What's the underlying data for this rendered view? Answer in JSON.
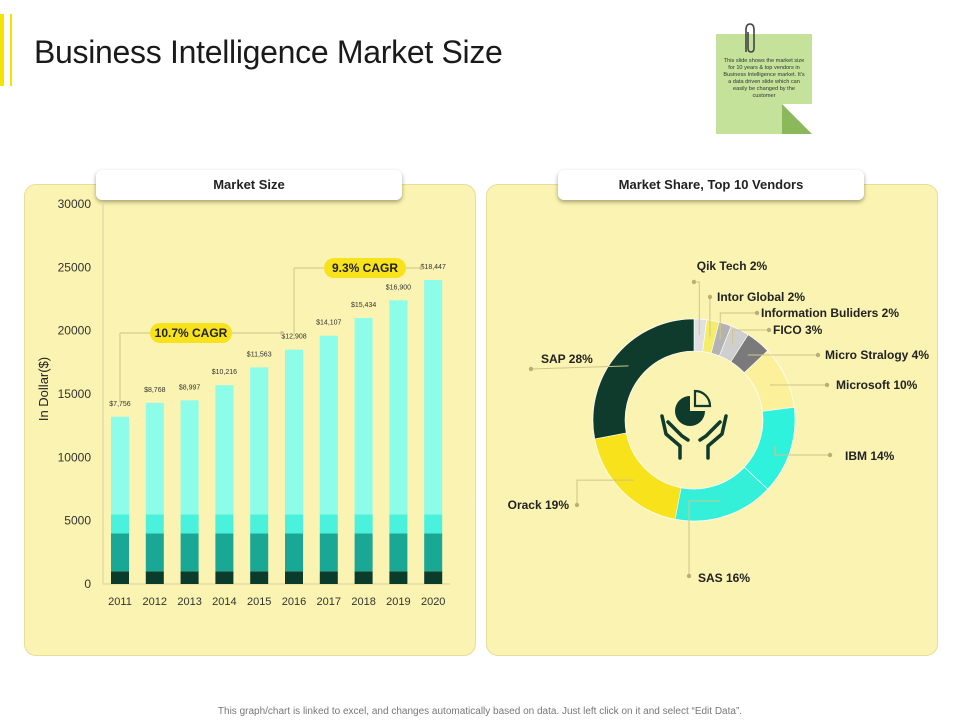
{
  "page": {
    "title": "Business Intelligence Market Size",
    "sticky_note": "This slide shows the market size for 10 years & top vendors in Business Intelligence market. It's a data driven slide which can easily be changed by the customer",
    "footer": "This graph/chart is linked to excel, and changes automatically  based on data. Just left click on it and select “Edit Data”."
  },
  "colors": {
    "accent": "#f2e400",
    "panel_bg": "#faf3b1",
    "sticky": "#c4e29a"
  },
  "chart_data": [
    {
      "type": "bar",
      "title": "Market Size",
      "ylabel": "In Dollar($)",
      "xlabel": "",
      "ylim": [
        0,
        30000
      ],
      "yticks": [
        0,
        5000,
        10000,
        15000,
        20000,
        25000,
        30000
      ],
      "categories": [
        "2011",
        "2012",
        "2013",
        "2014",
        "2015",
        "2016",
        "2017",
        "2018",
        "2019",
        "2020"
      ],
      "values": [
        13200,
        14300,
        14500,
        15700,
        17100,
        18500,
        19600,
        21000,
        22400,
        24000
      ],
      "series": [
        {
          "values": [
            1000,
            1000,
            1000,
            1000,
            1000,
            1000,
            1000,
            1000,
            1000,
            1000
          ],
          "color": "#0a3b2b"
        },
        {
          "values": [
            3000,
            3000,
            3000,
            3000,
            3000,
            3000,
            3000,
            3000,
            3000,
            3000
          ],
          "color": "#19a896"
        },
        {
          "values": [
            1500,
            1500,
            1500,
            1500,
            1500,
            1500,
            1500,
            1500,
            1500,
            1500
          ],
          "color": "#4af2de"
        },
        {
          "values": [
            7700,
            8800,
            9000,
            10200,
            11600,
            13000,
            14100,
            15500,
            16900,
            18500
          ],
          "color": "#8dfce9"
        }
      ],
      "data_labels": [
        "$7,756",
        "$8,768",
        "$8,997",
        "$10,216",
        "$11,563",
        "$12,908",
        "$14,107",
        "$15,434",
        "$16,900",
        "$18,447"
      ],
      "annotations": [
        {
          "text": "10.7% CAGR",
          "from": "2011",
          "to": "2016"
        },
        {
          "text": "9.3% CAGR",
          "from": "2016",
          "to": "2020"
        }
      ],
      "grid": false
    },
    {
      "type": "pie",
      "title": "Market Share, Top 10 Vendors",
      "categories": [
        "Qik Tech",
        "Intor Global",
        "Information Buliders",
        "FICO",
        "Micro Stralogy",
        "Microsoft",
        "IBM",
        "SAS",
        "Orack",
        "SAP"
      ],
      "values": [
        2,
        2,
        2,
        3,
        4,
        10,
        14,
        16,
        19,
        28
      ],
      "labels": [
        "Qik Tech 2%",
        "Intor Global 2%",
        "Information Buliders 2%",
        "FICO 3%",
        "Micro Stralogy 4%",
        "Microsoft 10%",
        "IBM 14%",
        "SAS 16%",
        "Orack 19%",
        "SAP 28%"
      ],
      "colors": [
        "#e0e0e0",
        "#f5ec6b",
        "#b3b3b3",
        "#cfcfcf",
        "#7a7a7a",
        "#fdf09a",
        "#2ef2dc",
        "#34f0d8",
        "#f7e21b",
        "#0e3b2c"
      ],
      "center_icon": "hands-pie-chart-icon"
    }
  ]
}
